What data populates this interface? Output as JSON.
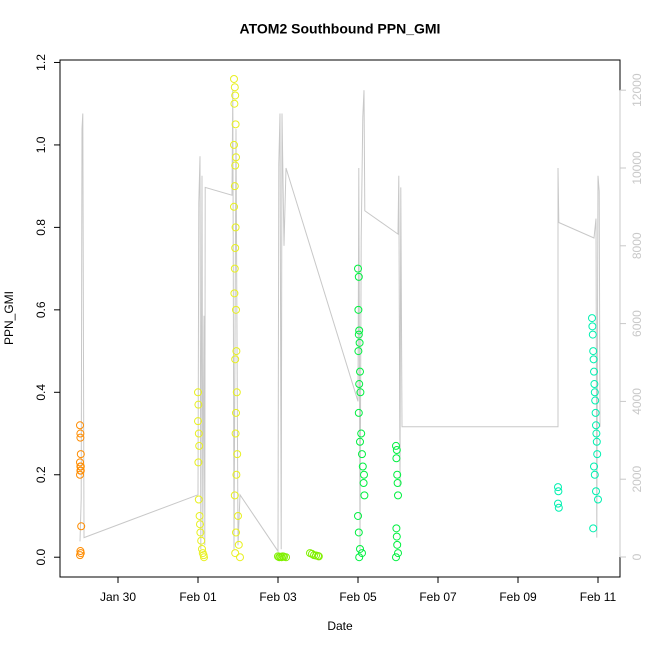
{
  "chart_data": {
    "type": "scatter",
    "title": "ATOM2 Southbound PPN_GMI",
    "xlabel": "Date",
    "ylabel": "PPN_GMI",
    "xlim": [
      28.55,
      42.55
    ],
    "xticks": [
      {
        "value": 30,
        "label": "Jan 30"
      },
      {
        "value": 32,
        "label": "Feb 01"
      },
      {
        "value": 34,
        "label": "Feb 03"
      },
      {
        "value": 36,
        "label": "Feb 05"
      },
      {
        "value": 38,
        "label": "Feb 07"
      },
      {
        "value": 40,
        "label": "Feb 09"
      },
      {
        "value": 42,
        "label": "Feb 11"
      }
    ],
    "ylim": [
      -0.048,
      1.206
    ],
    "yticks": [
      {
        "value": 0,
        "label": "0.0"
      },
      0.2,
      0.4,
      0.6,
      0.8,
      {
        "value": 1,
        "label": "1.0"
      },
      1.2
    ],
    "y2lim": [
      -514,
      12776
    ],
    "y2ticks": [
      0,
      2000,
      4000,
      6000,
      8000,
      10000,
      12000
    ],
    "series": [
      {
        "type": "line",
        "axis": "y2",
        "color": "#c8c8c8",
        "x": [
          29.05,
          29.08,
          29.1,
          29.12,
          29.15,
          32.0,
          32.02,
          32.05,
          32.07,
          32.1,
          32.12,
          32.15,
          32.17,
          32.18,
          32.85,
          32.87,
          32.9,
          32.95,
          33.0,
          33.05,
          34.0,
          34.02,
          34.05,
          34.08,
          34.1,
          34.15,
          34.2,
          36.0,
          36.02,
          36.05,
          36.08,
          36.12,
          36.15,
          36.17,
          37.0,
          37.02,
          37.05,
          37.07,
          37.1,
          41.0,
          41.0,
          41.02,
          41.9,
          41.95,
          41.97,
          42.0,
          42.03,
          42.05
        ],
        "values": [
          400,
          1500,
          11000,
          11400,
          500,
          1600,
          9100,
          10300,
          200,
          9800,
          500,
          6200,
          300,
          9500,
          9300,
          12000,
          200,
          11000,
          300,
          1600,
          150,
          10100,
          11400,
          200,
          11400,
          8000,
          10000,
          4000,
          10000,
          200,
          8200,
          11300,
          12000,
          8900,
          8300,
          9800,
          1800,
          9500,
          3350,
          3350,
          10000,
          8600,
          8200,
          8700,
          500,
          9800,
          9400,
          3350
        ]
      },
      {
        "color": "#ff8c00",
        "x": [
          29.05,
          29.06,
          29.06,
          29.07,
          29.05,
          29.06,
          29.07,
          29.06,
          29.05,
          29.07,
          29.08,
          29.06,
          29.07,
          29.05
        ],
        "values": [
          0.32,
          0.3,
          0.29,
          0.25,
          0.23,
          0.22,
          0.22,
          0.21,
          0.2,
          0.21,
          0.075,
          0.015,
          0.01,
          0.005
        ]
      },
      {
        "color": "#e8f020",
        "x": [
          32.0,
          32.01,
          32.0,
          32.02,
          32.03,
          32.01,
          32.02,
          32.04,
          32.05,
          32.06,
          32.08,
          32.1,
          32.12,
          32.14,
          32.15,
          32.9,
          32.92,
          32.93,
          32.91,
          32.94,
          32.9,
          32.95,
          32.93,
          32.92,
          32.9,
          32.94,
          32.93,
          32.92,
          32.91,
          32.95,
          32.96,
          32.93,
          32.97,
          32.95,
          32.94,
          32.98,
          32.96,
          32.92,
          33.0,
          32.95,
          33.02,
          32.93,
          33.05
        ],
        "values": [
          0.4,
          0.37,
          0.33,
          0.3,
          0.27,
          0.23,
          0.14,
          0.1,
          0.08,
          0.06,
          0.04,
          0.02,
          0.01,
          0.005,
          0.0,
          1.16,
          1.14,
          1.12,
          1.1,
          1.05,
          1.0,
          0.97,
          0.95,
          0.9,
          0.85,
          0.8,
          0.75,
          0.7,
          0.64,
          0.6,
          0.5,
          0.48,
          0.4,
          0.35,
          0.3,
          0.25,
          0.2,
          0.15,
          0.1,
          0.06,
          0.03,
          0.01,
          0.0
        ]
      },
      {
        "color": "#80f000",
        "x": [
          34.0,
          34.03,
          34.06,
          34.09,
          34.12,
          34.15,
          34.2,
          34.8,
          34.85,
          34.9,
          34.95,
          35.0,
          35.02
        ],
        "values": [
          0.002,
          0.0,
          0.001,
          0.0,
          0.002,
          0.001,
          0.0,
          0.01,
          0.008,
          0.005,
          0.004,
          0.003,
          0.002
        ]
      },
      {
        "color": "#00f040",
        "x": [
          36.0,
          36.02,
          36.01,
          36.03,
          36.02,
          36.04,
          36.01,
          36.05,
          36.03,
          36.06,
          36.02,
          36.08,
          36.05,
          36.1,
          36.12,
          36.15,
          36.14,
          36.16,
          36.0,
          36.02,
          36.05,
          36.1,
          36.03,
          36.95,
          36.97,
          36.96,
          36.98,
          36.99,
          37.0,
          36.96,
          36.97,
          36.98,
          37.0,
          36.95
        ],
        "values": [
          0.7,
          0.68,
          0.6,
          0.55,
          0.54,
          0.52,
          0.5,
          0.45,
          0.42,
          0.4,
          0.35,
          0.3,
          0.28,
          0.25,
          0.22,
          0.2,
          0.18,
          0.15,
          0.1,
          0.06,
          0.02,
          0.01,
          0.0,
          0.27,
          0.26,
          0.24,
          0.2,
          0.18,
          0.15,
          0.07,
          0.05,
          0.03,
          0.01,
          0.0
        ]
      },
      {
        "color": "#00f0b0",
        "x": [
          41.0,
          41.01,
          41.0,
          41.02,
          41.85,
          41.86,
          41.87,
          41.88,
          41.89,
          41.9,
          41.91,
          41.92,
          41.93,
          41.94,
          41.95,
          41.96,
          41.97,
          41.98,
          41.9,
          41.92,
          41.95,
          42.0,
          41.88
        ],
        "values": [
          0.17,
          0.16,
          0.13,
          0.12,
          0.58,
          0.56,
          0.54,
          0.5,
          0.48,
          0.45,
          0.42,
          0.4,
          0.38,
          0.35,
          0.32,
          0.3,
          0.28,
          0.25,
          0.22,
          0.2,
          0.16,
          0.14,
          0.07
        ]
      }
    ]
  }
}
